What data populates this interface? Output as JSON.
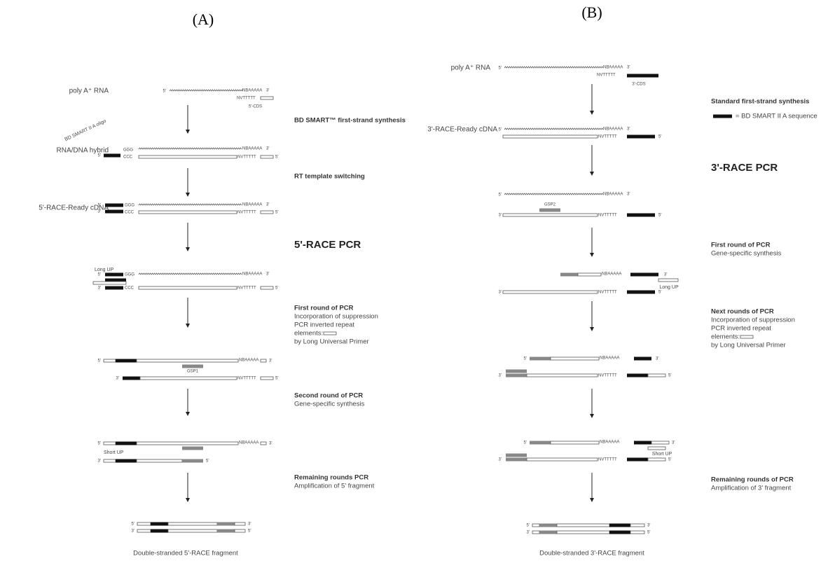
{
  "panels": [
    {
      "label": "(A)",
      "inputs": [
        "poly A⁺ RNA",
        "RNA/DNA hybrid",
        "5'-RACE-Ready cDNA"
      ],
      "steps": [
        {
          "title": "BD SMART™ first-strand synthesis"
        },
        {
          "title": "RT template switching"
        },
        {
          "title": "5'-RACE PCR"
        },
        {
          "title": "First round of PCR",
          "text": [
            "Incorporation of suppression",
            "PCR inverted repeat",
            "elements:",
            "by Long Universal Primer"
          ]
        },
        {
          "title": "Second round of PCR",
          "text": [
            "Gene-specific synthesis"
          ]
        },
        {
          "title": "Remaining rounds PCR",
          "text": [
            "Amplification of 5' fragment"
          ]
        }
      ],
      "annotations": [
        "5'-CDS",
        "BD SMART II A oligo",
        "Long UP",
        "GSP1",
        "Short UP"
      ],
      "product": "Double-stranded 5'-RACE fragment"
    },
    {
      "label": "(B)",
      "inputs": [
        "poly A⁺ RNA",
        "3'-RACE-Ready cDNA"
      ],
      "steps": [
        {
          "title": "Standard first-strand synthesis"
        },
        {
          "title": "3'-RACE PCR"
        },
        {
          "title": "First round of PCR",
          "text": [
            "Gene-specific synthesis"
          ]
        },
        {
          "title": "Next rounds of PCR",
          "text": [
            "Incorporation of suppression",
            "PCR inverted repeat",
            "elements:",
            "by Long Universal Primer"
          ]
        },
        {
          "title": "Remaining rounds of PCR",
          "text": [
            "Amplification of 3' fragment"
          ]
        }
      ],
      "legend": "= BD SMART II A sequence",
      "annotations": [
        "3'-CDS",
        "GSP2",
        "Long UP",
        "Short UP"
      ],
      "product": "Double-stranded 3'-RACE fragment"
    }
  ],
  "strand_labels": {
    "five": "5'",
    "three": "3'",
    "polyA": "NBAAAAA",
    "polyT": "NVTTTTT",
    "ggg": "GGG",
    "ccc": "CCC"
  }
}
